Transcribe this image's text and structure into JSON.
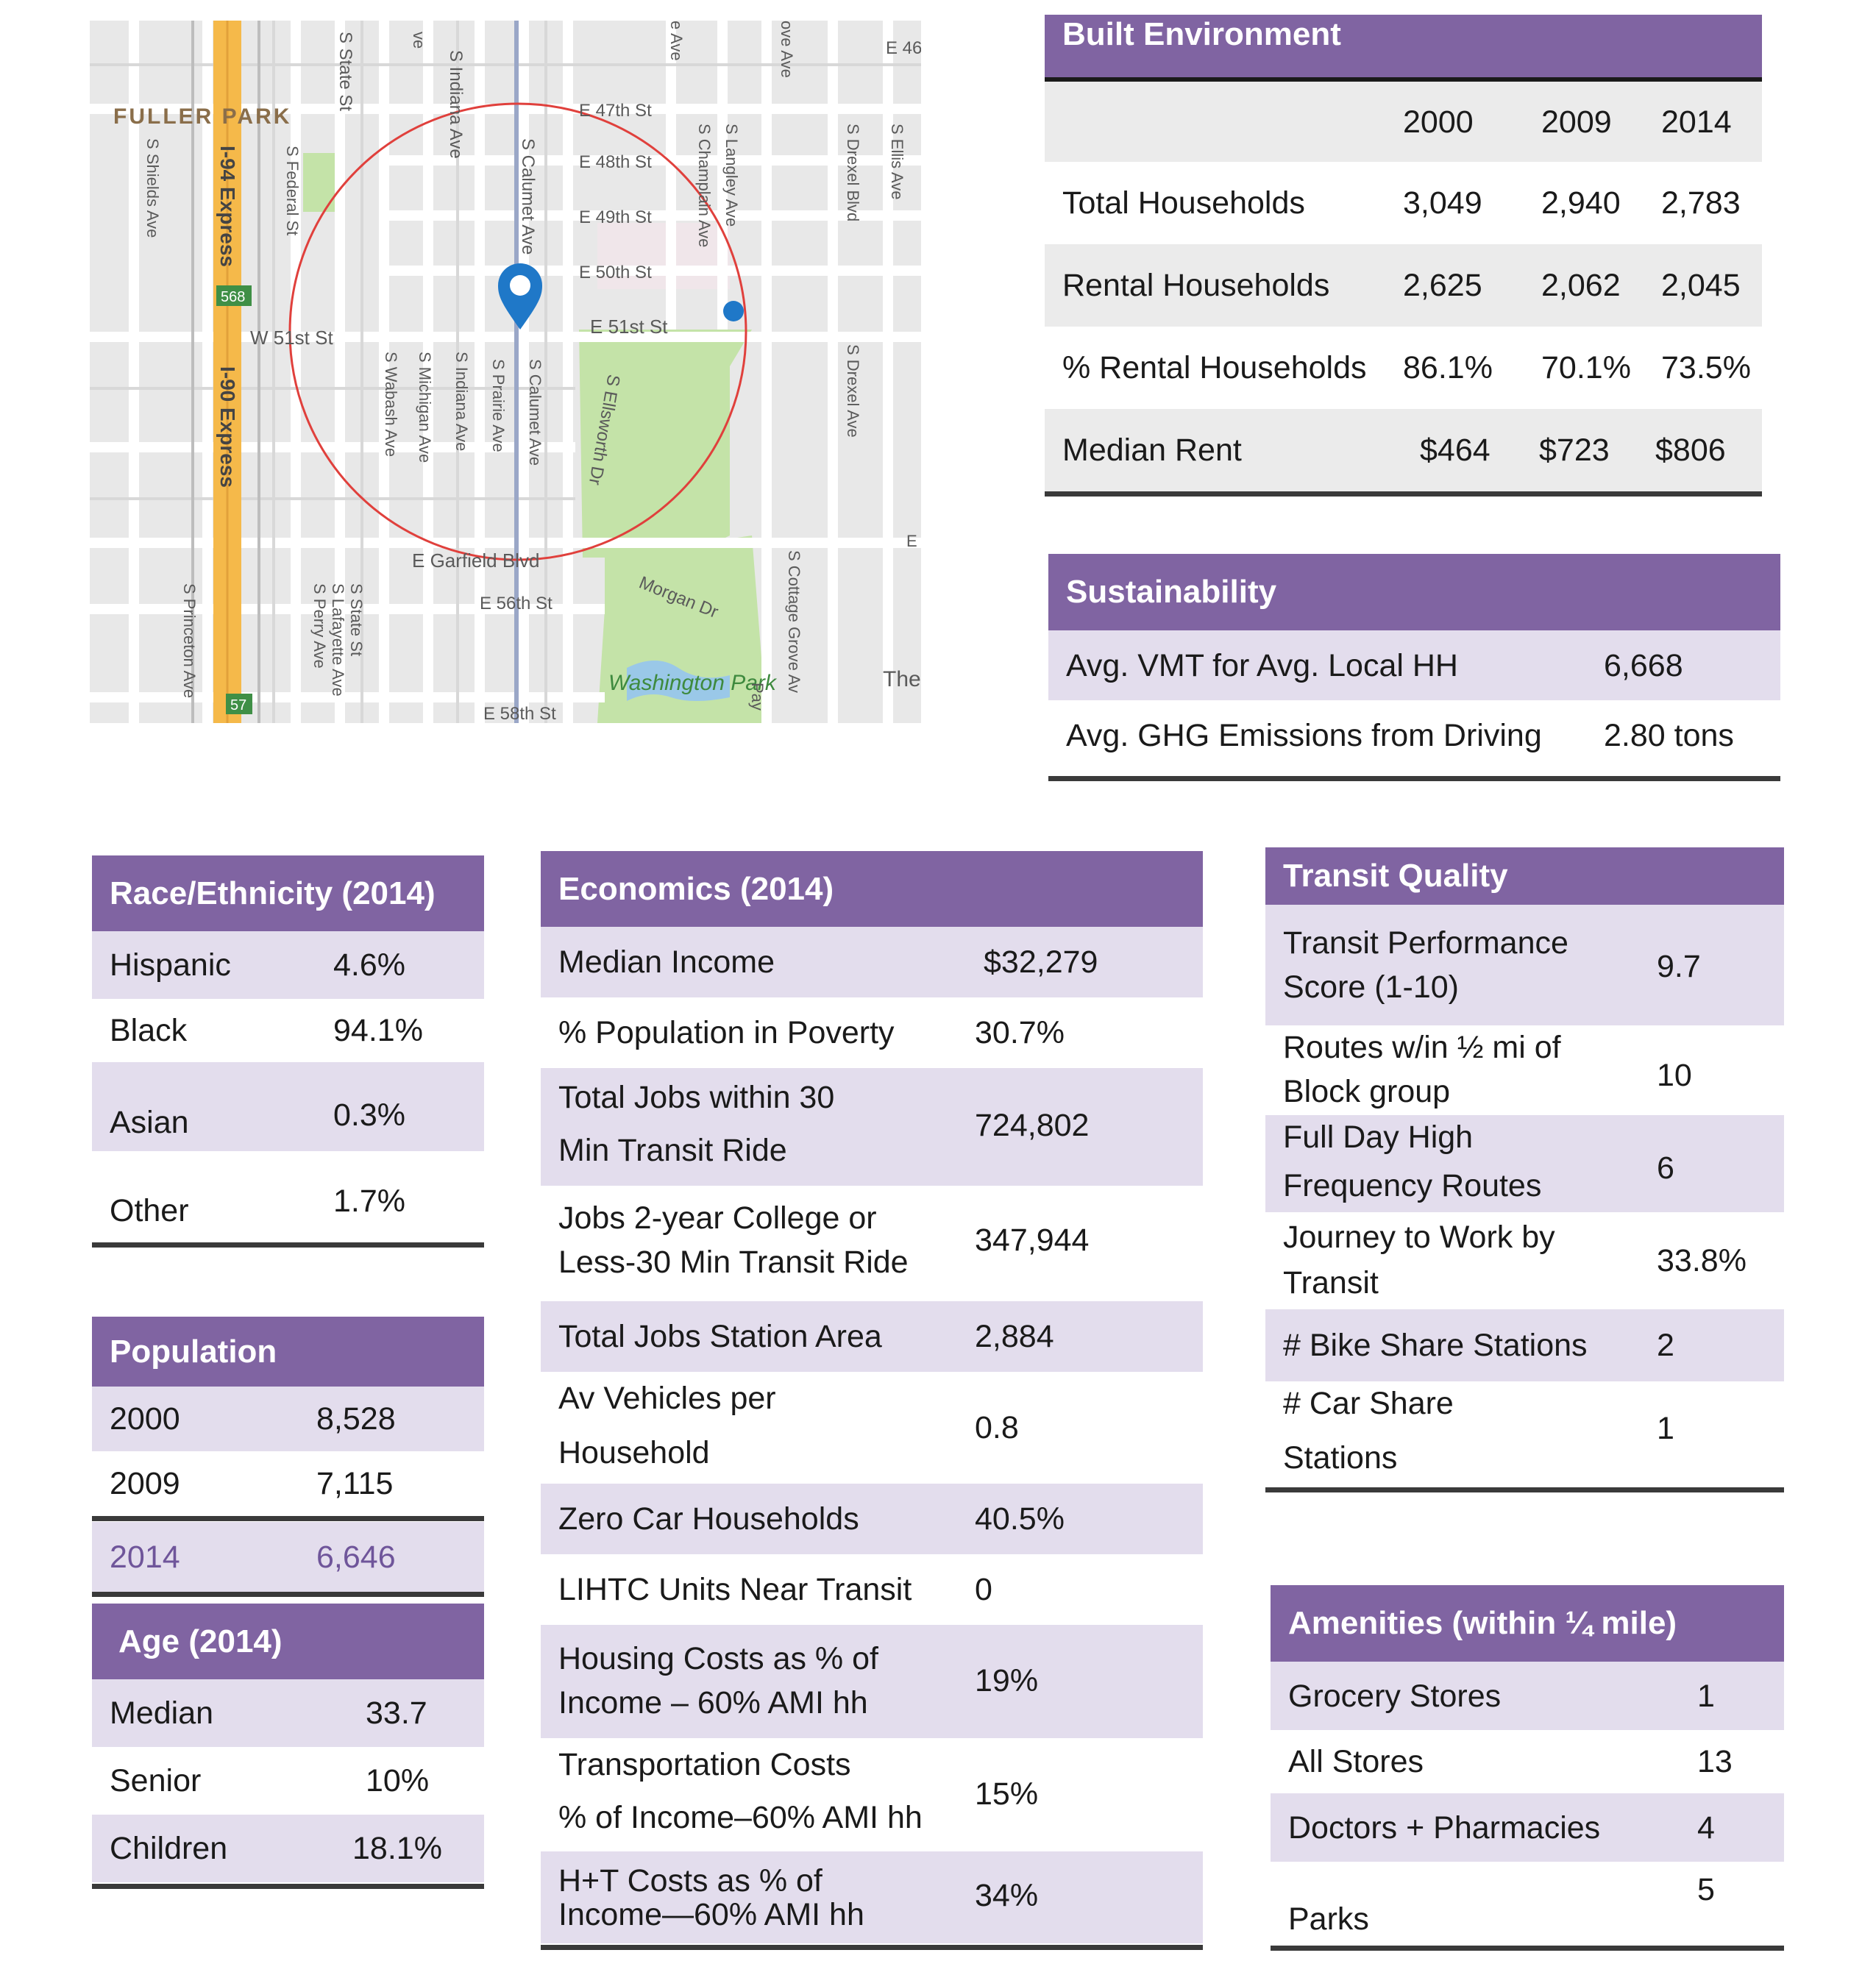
{
  "map": {
    "labels": {
      "fuller_park": "FULLER PARK",
      "i94": "I-94 Express",
      "i90": "I-90 Express",
      "shield_568": "568",
      "shield_57": "57",
      "w51": "W 51st St",
      "e47": "E 47th St",
      "e48": "E 48th St",
      "e49": "E 49th St",
      "e50": "E 50th St",
      "e51": "E 51st St",
      "garfield": "E Garfield Blvd",
      "e56": "E 56th St",
      "e58": "E 58th St",
      "e46": "E 46",
      "state": "S State St",
      "state2": "S State St",
      "federal": "S Federal St",
      "shields": "S Shields Ave",
      "indiana": "S Indiana Ave",
      "indiana2": "S Indiana Ave",
      "calumet": "S Calumet Ave",
      "calumet2": "S Calumet Ave",
      "prairie": "S Prairie Ave",
      "michigan": "S Michigan Ave",
      "wabash": "S Wabash Ave",
      "champlain": "S Champlain Ave",
      "langley": "S Langley Ave",
      "drexel": "S Drexel Blvd",
      "drexel_ave": "S Drexel Ave",
      "ellis": "S Ellis Ave",
      "ellsworth": "S Ellsworth Dr",
      "morgan": "Morgan Dr",
      "washington_park": "Washington Park",
      "cottage": "S Cottage Grove Av",
      "princeton": "S Princeton Ave",
      "lafayette": "S Lafayette Ave",
      "perry": "S Perry Ave",
      "ve": "ve",
      "e_ave": "e Ave",
      "ove_ave": "ove Ave",
      "the": "The",
      "pay": "Pay",
      "e_edge": "E"
    }
  },
  "built_environment": {
    "title": "Built Environment",
    "years": [
      "2000",
      "2009",
      "2014"
    ],
    "rows": [
      {
        "label": "Total Households",
        "values": [
          "3,049",
          "2,940",
          "2,783"
        ]
      },
      {
        "label": "Rental Households",
        "values": [
          "2,625",
          "2,062",
          "2,045"
        ]
      },
      {
        "label": "% Rental Households",
        "values": [
          "86.1%",
          "70.1%",
          "73.5%"
        ]
      },
      {
        "label": "Median Rent",
        "values": [
          "$464",
          "$723",
          "$806"
        ]
      }
    ]
  },
  "sustainability": {
    "title": "Sustainability",
    "rows": [
      {
        "label": "Avg. VMT  for Avg. Local HH",
        "value": "6,668"
      },
      {
        "label": "Avg. GHG Emissions from Driving",
        "value": "2.80 tons"
      }
    ]
  },
  "race": {
    "title": "Race/Ethnicity (2014)",
    "rows": [
      {
        "label": "Hispanic",
        "value": "4.6%"
      },
      {
        "label": "Black",
        "value": "94.1%"
      },
      {
        "label": "Asian",
        "value": "0.3%"
      },
      {
        "label": "Other",
        "value": "1.7%"
      }
    ]
  },
  "population": {
    "title": "Population",
    "rows": [
      {
        "label": "2000",
        "value": "8,528"
      },
      {
        "label": "2009",
        "value": "7,115"
      },
      {
        "label": "2014",
        "value": "6,646"
      }
    ]
  },
  "age": {
    "title": "Age (2014)",
    "rows": [
      {
        "label": "Median",
        "value": "33.7"
      },
      {
        "label": "Senior",
        "value": "10%"
      },
      {
        "label": "Children",
        "value": "18.1%"
      }
    ]
  },
  "economics": {
    "title": "Economics (2014)",
    "rows": [
      {
        "l1": "Median Income",
        "l2": "",
        "value": "$32,279"
      },
      {
        "l1": "% Population in Poverty",
        "l2": "",
        "value": "30.7%"
      },
      {
        "l1": "Total Jobs within 30",
        "l2": "Min Transit Ride",
        "value": "724,802"
      },
      {
        "l1": "Jobs 2-year College or",
        "l2": "Less-30 Min Transit Ride",
        "value": "347,944"
      },
      {
        "l1": "Total Jobs Station Area",
        "l2": "",
        "value": "2,884"
      },
      {
        "l1": "Av Vehicles per",
        "l2": "Household",
        "value": "0.8"
      },
      {
        "l1": "Zero Car Households",
        "l2": "",
        "value": "40.5%"
      },
      {
        "l1": "LIHTC Units Near Transit",
        "l2": "",
        "value": "0"
      },
      {
        "l1": "Housing Costs as % of",
        "l2": "Income – 60% AMI hh",
        "value": "19%"
      },
      {
        "l1": "Transportation Costs",
        "l2": "% of Income–60% AMI hh",
        "value": "15%"
      },
      {
        "l1": "H+T Costs as % of",
        "l2": "Income—60% AMI hh",
        "value": "34%"
      }
    ]
  },
  "transit": {
    "title": "Transit Quality",
    "rows": [
      {
        "l1": "Transit Performance",
        "l2": "Score (1-10)",
        "value": "9.7"
      },
      {
        "l1": "Routes w/in ½ mi of",
        "l2": "Block group",
        "value": "10"
      },
      {
        "l1": "Full Day High",
        "l2": "Frequency Routes",
        "value": "6"
      },
      {
        "l1": "Journey to Work by",
        "l2": "Transit",
        "value": "33.8%"
      },
      {
        "l1": "# Bike Share Stations",
        "l2": "",
        "value": "2"
      },
      {
        "l1": "# Car Share",
        "l2": "Stations",
        "value": "1"
      }
    ]
  },
  "amenities": {
    "title": "Amenities (within ¼ mile)",
    "rows": [
      {
        "label": "Grocery Stores",
        "value": "1"
      },
      {
        "label": "All Stores",
        "value": "13"
      },
      {
        "label": "Doctors + Pharmacies",
        "value": "4"
      },
      {
        "label": "Parks",
        "value": "5"
      }
    ]
  },
  "colors": {
    "header_purple": "#8064a2",
    "row_lavender": "#e3dded",
    "row_gray": "#ebebeb",
    "highlight_text": "#6f559a",
    "map_park": "#c4e3a8",
    "map_highway": "#f5b94a",
    "map_circle": "#e0403c"
  }
}
